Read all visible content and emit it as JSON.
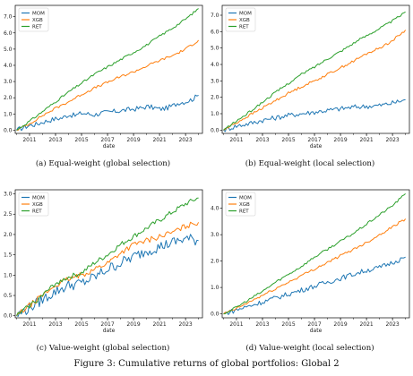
{
  "figure_caption": "Figure 3: Cumulative returns of global portfolios: Global 2",
  "colors": {
    "MOM": "#1f77b4",
    "XGB": "#ff7f0e",
    "RET": "#2ca02c"
  },
  "chart_data": [
    {
      "type": "line",
      "caption": "(a) Equal-weight (global selection)",
      "xlabel": "date",
      "ylabel": "",
      "xlim": [
        2009.9,
        2024.3
      ],
      "ylim": [
        -0.2,
        7.7
      ],
      "xticks": [
        "2011",
        "2013",
        "2015",
        "2017",
        "2019",
        "2021",
        "2023"
      ],
      "yticks": [
        "0.0",
        "1.0",
        "2.0",
        "3.0",
        "4.0",
        "5.0",
        "6.0",
        "7.0"
      ],
      "legend": "top-left",
      "grid": false,
      "series": [
        {
          "name": "MOM",
          "x": [
            2010,
            2010.5,
            2011,
            2011.5,
            2012,
            2012.5,
            2013,
            2013.5,
            2014,
            2014.5,
            2015,
            2015.5,
            2016,
            2016.5,
            2017,
            2017.5,
            2018,
            2018.5,
            2019,
            2019.5,
            2020,
            2020.5,
            2021,
            2021.5,
            2022,
            2022.5,
            2023,
            2023.5,
            2024
          ],
          "values": [
            0,
            0.15,
            0.3,
            0.35,
            0.5,
            0.6,
            0.7,
            0.75,
            0.95,
            0.9,
            1.05,
            1.0,
            0.95,
            1.05,
            1.1,
            1.15,
            1.2,
            1.25,
            1.3,
            1.35,
            1.45,
            1.4,
            1.3,
            1.35,
            1.5,
            1.7,
            1.75,
            1.9,
            2.15
          ]
        },
        {
          "name": "XGB",
          "x": [
            2010,
            2011,
            2012,
            2013,
            2014,
            2015,
            2016,
            2017,
            2018,
            2019,
            2020,
            2021,
            2022,
            2023,
            2024
          ],
          "values": [
            0,
            0.4,
            0.9,
            1.35,
            1.75,
            2.2,
            2.6,
            2.95,
            3.3,
            3.6,
            3.95,
            4.3,
            4.6,
            5.0,
            5.55
          ]
        },
        {
          "name": "RET",
          "x": [
            2010,
            2011,
            2012,
            2013,
            2014,
            2015,
            2016,
            2017,
            2018,
            2019,
            2020,
            2021,
            2022,
            2023,
            2024
          ],
          "values": [
            0,
            0.55,
            1.15,
            1.75,
            2.35,
            2.9,
            3.45,
            3.9,
            4.35,
            4.8,
            5.25,
            5.8,
            6.3,
            6.85,
            7.5
          ]
        }
      ]
    },
    {
      "type": "line",
      "caption": "(b) Equal-weight (local selection)",
      "xlabel": "date",
      "ylabel": "",
      "xlim": [
        2009.9,
        2024.3
      ],
      "ylim": [
        -0.2,
        7.6
      ],
      "xticks": [
        "2011",
        "2013",
        "2015",
        "2017",
        "2019",
        "2021",
        "2023"
      ],
      "yticks": [
        "0.0",
        "1.0",
        "2.0",
        "3.0",
        "4.0",
        "5.0",
        "6.0",
        "7.0"
      ],
      "legend": "top-left",
      "grid": false,
      "series": [
        {
          "name": "MOM",
          "x": [
            2010,
            2011,
            2012,
            2013,
            2014,
            2015,
            2016,
            2017,
            2018,
            2019,
            2020,
            2021,
            2022,
            2023,
            2024
          ],
          "values": [
            0,
            0.25,
            0.4,
            0.6,
            0.75,
            0.9,
            1.0,
            1.1,
            1.2,
            1.3,
            1.4,
            1.45,
            1.5,
            1.65,
            1.85
          ]
        },
        {
          "name": "XGB",
          "x": [
            2010,
            2011,
            2012,
            2013,
            2014,
            2015,
            2016,
            2017,
            2018,
            2019,
            2020,
            2021,
            2022,
            2023,
            2024
          ],
          "values": [
            0,
            0.45,
            0.9,
            1.35,
            1.8,
            2.25,
            2.65,
            3.0,
            3.4,
            3.8,
            4.2,
            4.65,
            5.0,
            5.45,
            6.1
          ]
        },
        {
          "name": "RET",
          "x": [
            2010,
            2011,
            2012,
            2013,
            2014,
            2015,
            2016,
            2017,
            2018,
            2019,
            2020,
            2021,
            2022,
            2023,
            2024
          ],
          "values": [
            0,
            0.55,
            1.1,
            1.7,
            2.3,
            2.85,
            3.4,
            3.85,
            4.35,
            4.8,
            5.3,
            5.75,
            6.2,
            6.65,
            7.2
          ]
        }
      ]
    },
    {
      "type": "line",
      "caption": "(c) Value-weight (global selection)",
      "xlabel": "date",
      "ylabel": "",
      "xlim": [
        2009.9,
        2024.3
      ],
      "ylim": [
        -0.05,
        3.1
      ],
      "xticks": [
        "2011",
        "2013",
        "2015",
        "2017",
        "2019",
        "2021",
        "2023"
      ],
      "yticks": [
        "0.0",
        "0.5",
        "1.0",
        "1.5",
        "2.0",
        "2.5",
        "3.0"
      ],
      "legend": "top-left",
      "grid": false,
      "series": [
        {
          "name": "MOM",
          "x": [
            2010,
            2011,
            2012,
            2013,
            2014,
            2015,
            2016,
            2017,
            2018,
            2019,
            2020,
            2021,
            2022,
            2023,
            2024
          ],
          "values": [
            0,
            0.2,
            0.4,
            0.6,
            0.75,
            0.8,
            0.95,
            1.15,
            1.3,
            1.45,
            1.6,
            1.7,
            1.8,
            1.9,
            1.85
          ]
        },
        {
          "name": "XGB",
          "x": [
            2010,
            2011,
            2012,
            2013,
            2014,
            2015,
            2016,
            2017,
            2018,
            2019,
            2020,
            2021,
            2022,
            2023,
            2024
          ],
          "values": [
            0,
            0.25,
            0.5,
            0.75,
            0.9,
            1.0,
            1.15,
            1.3,
            1.55,
            1.75,
            1.85,
            1.95,
            2.05,
            2.2,
            2.3
          ]
        },
        {
          "name": "RET",
          "x": [
            2010,
            2011,
            2012,
            2013,
            2014,
            2015,
            2016,
            2017,
            2018,
            2019,
            2020,
            2021,
            2022,
            2023,
            2024
          ],
          "values": [
            0,
            0.25,
            0.5,
            0.8,
            0.95,
            1.05,
            1.3,
            1.5,
            1.75,
            1.95,
            2.15,
            2.35,
            2.55,
            2.75,
            2.9
          ]
        }
      ]
    },
    {
      "type": "line",
      "caption": "(d) Value-weight (local selection)",
      "xlabel": "date",
      "ylabel": "",
      "xlim": [
        2009.9,
        2024.3
      ],
      "ylim": [
        -0.15,
        4.7
      ],
      "xticks": [
        "2011",
        "2013",
        "2015",
        "2017",
        "2019",
        "2021",
        "2023"
      ],
      "yticks": [
        "0.0",
        "1.0",
        "2.0",
        "3.0",
        "4.0"
      ],
      "legend": "top-left",
      "grid": false,
      "series": [
        {
          "name": "MOM",
          "x": [
            2010,
            2011,
            2012,
            2013,
            2014,
            2015,
            2016,
            2017,
            2018,
            2019,
            2020,
            2021,
            2022,
            2023,
            2024
          ],
          "values": [
            0,
            0.15,
            0.3,
            0.45,
            0.6,
            0.75,
            0.9,
            1.05,
            1.2,
            1.35,
            1.5,
            1.65,
            1.75,
            1.95,
            2.15
          ]
        },
        {
          "name": "XGB",
          "x": [
            2010,
            2011,
            2012,
            2013,
            2014,
            2015,
            2016,
            2017,
            2018,
            2019,
            2020,
            2021,
            2022,
            2023,
            2024
          ],
          "values": [
            0,
            0.2,
            0.45,
            0.7,
            0.95,
            1.2,
            1.45,
            1.7,
            1.95,
            2.2,
            2.45,
            2.7,
            3.0,
            3.3,
            3.6
          ]
        },
        {
          "name": "RET",
          "x": [
            2010,
            2011,
            2012,
            2013,
            2014,
            2015,
            2016,
            2017,
            2018,
            2019,
            2020,
            2021,
            2022,
            2023,
            2024
          ],
          "values": [
            0,
            0.25,
            0.55,
            0.85,
            1.2,
            1.5,
            1.8,
            2.15,
            2.45,
            2.75,
            3.05,
            3.4,
            3.75,
            4.1,
            4.55
          ]
        }
      ]
    }
  ]
}
